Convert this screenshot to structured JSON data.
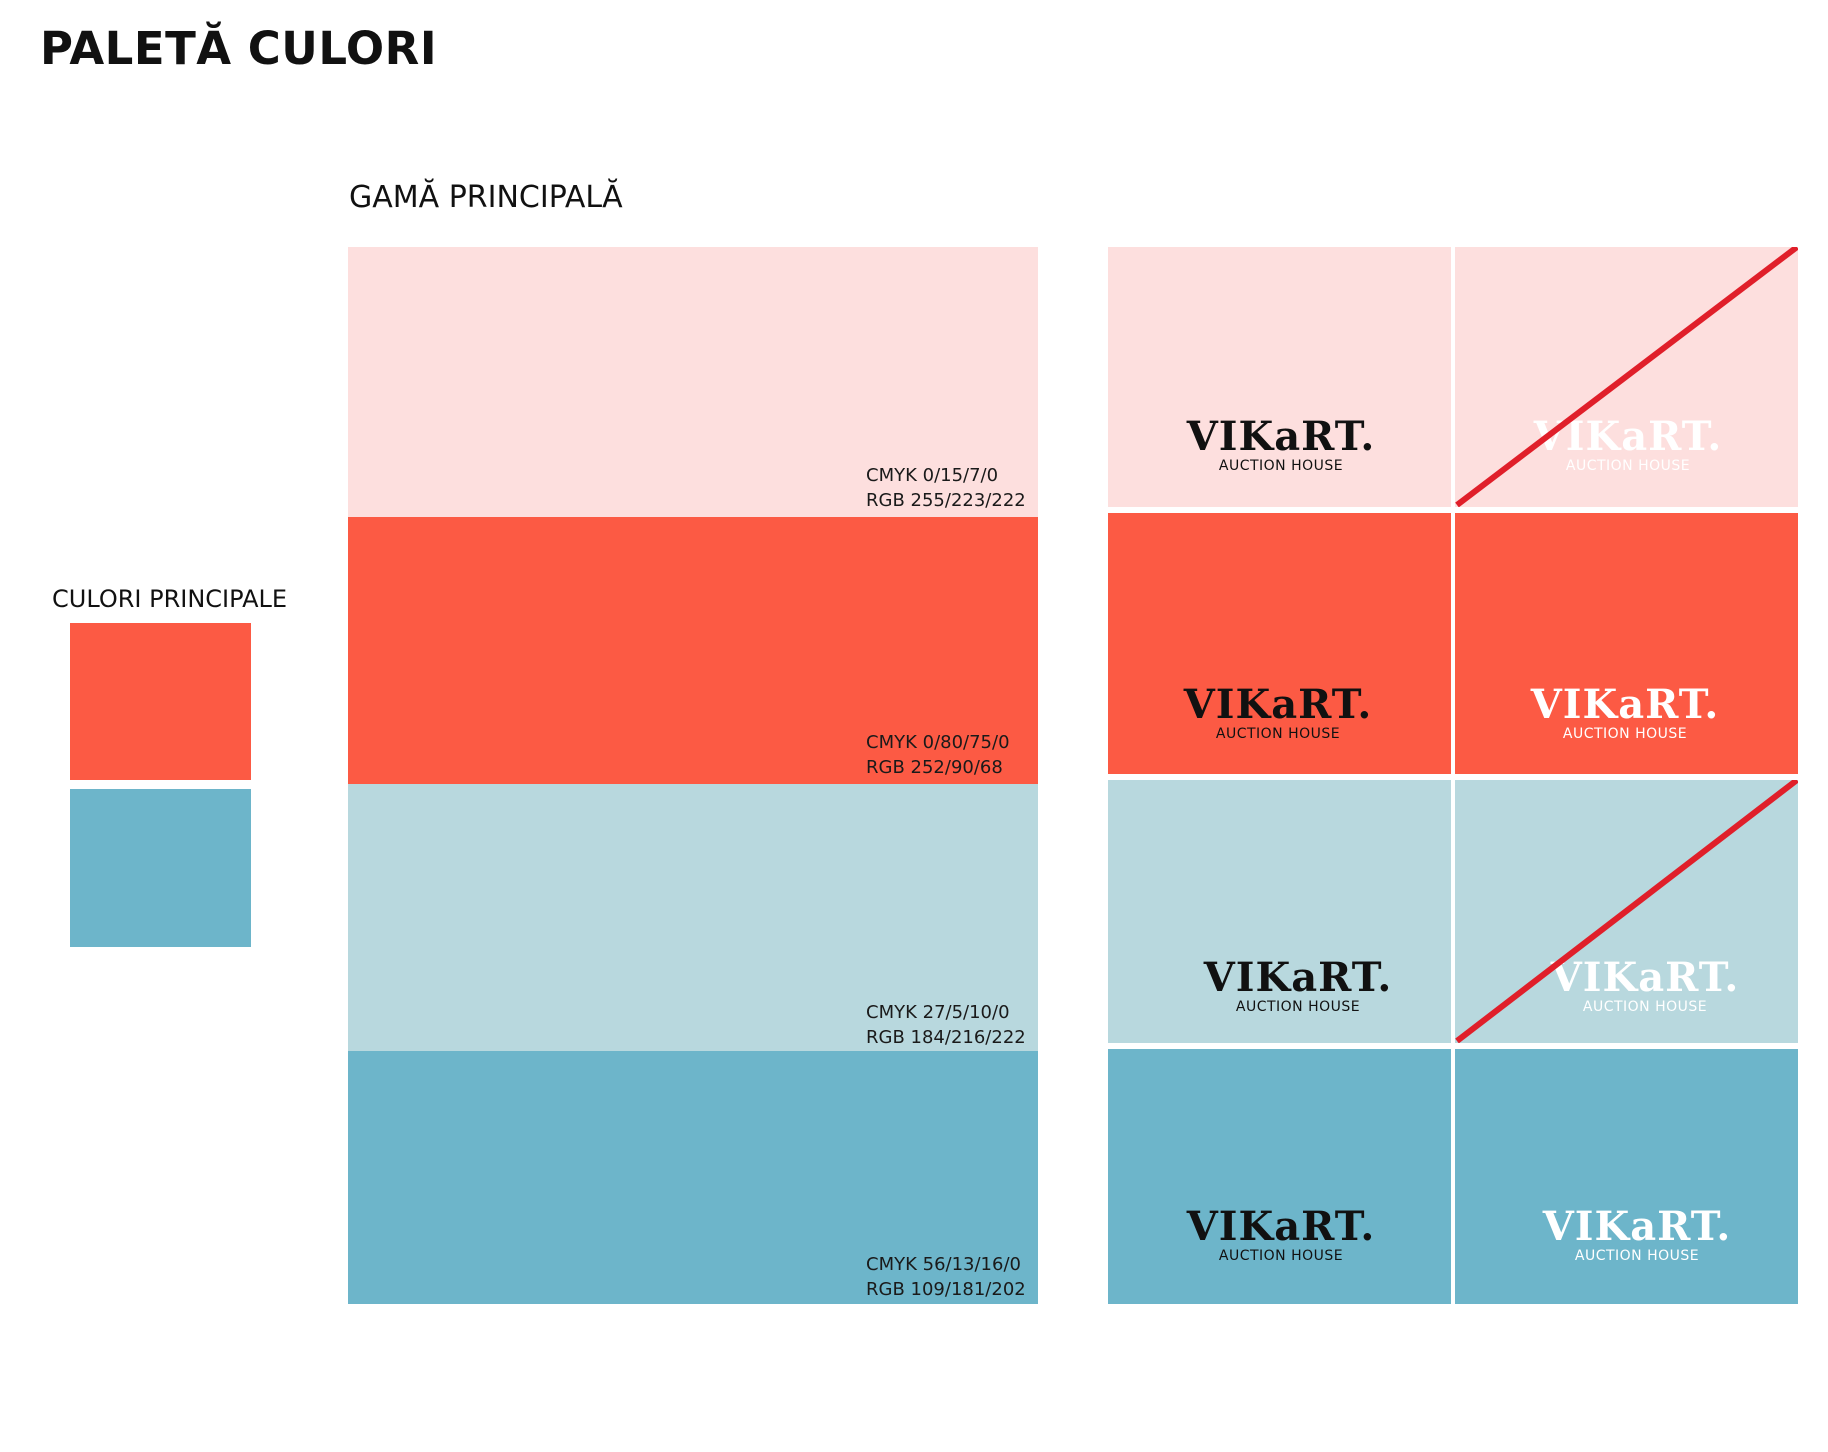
{
  "page_title": "PALETĂ CULORI",
  "main_range": {
    "label": "GAMĂ PRINCIPALĂ",
    "bands": [
      {
        "color": "#FDDFDE",
        "cmyk": "CMYK 0/15/7/0",
        "rgb": "RGB 255/223/222"
      },
      {
        "color": "#FC5A44",
        "cmyk": "CMYK 0/80/75/0",
        "rgb": "RGB 252/90/68"
      },
      {
        "color": "#B8D8DE",
        "cmyk": "CMYK 27/5/10/0",
        "rgb": "RGB 184/216/222"
      },
      {
        "color": "#6DB5CA",
        "cmyk": "CMYK 56/13/16/0",
        "rgb": "RGB 109/181/202"
      }
    ]
  },
  "primary_colors": {
    "label": "CULORI PRINCIPALE",
    "swatches": [
      {
        "color": "#FC5A44"
      },
      {
        "color": "#6DB5CA"
      }
    ]
  },
  "logo": {
    "wordmark": "VIKaRT.",
    "subtitle": "AUCTION HOUSE"
  },
  "logo_grid": [
    {
      "bg": "#FDDFDE",
      "logo_color": "dark",
      "crossed": false
    },
    {
      "bg": "#FDDFDE",
      "logo_color": "light",
      "crossed": true
    },
    {
      "bg": "#FC5A44",
      "logo_color": "dark",
      "crossed": false
    },
    {
      "bg": "#FC5A44",
      "logo_color": "light",
      "crossed": false
    },
    {
      "bg": "#B8D8DE",
      "logo_color": "dark",
      "crossed": false
    },
    {
      "bg": "#B8D8DE",
      "logo_color": "light",
      "crossed": true
    },
    {
      "bg": "#6DB5CA",
      "logo_color": "dark",
      "crossed": false
    },
    {
      "bg": "#6DB5CA",
      "logo_color": "light",
      "crossed": false
    }
  ],
  "strike_color": "#E01F2A"
}
